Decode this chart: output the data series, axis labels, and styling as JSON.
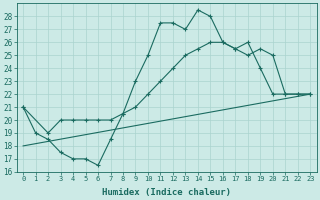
{
  "line1_x": [
    0,
    1,
    2,
    3,
    4,
    5,
    6,
    7,
    8,
    9,
    10,
    11,
    12,
    13,
    14,
    15,
    16,
    17,
    18,
    19,
    20,
    21,
    22,
    23
  ],
  "line1_y": [
    21,
    19,
    18.5,
    17.5,
    17,
    17,
    16.5,
    18.5,
    20.5,
    23,
    25,
    27.5,
    27.5,
    27,
    28.5,
    28,
    26,
    25.5,
    26,
    24,
    22,
    22,
    22,
    22
  ],
  "line2_x": [
    0,
    2,
    3,
    4,
    5,
    6,
    7,
    8,
    9,
    10,
    11,
    12,
    13,
    14,
    15,
    16,
    17,
    18,
    19,
    20,
    21,
    22,
    23
  ],
  "line2_y": [
    21,
    19,
    20,
    20,
    20,
    20,
    20,
    20.5,
    21,
    22,
    23,
    24,
    25,
    25.5,
    26,
    26,
    25.5,
    25,
    25.5,
    25,
    22,
    22,
    22
  ],
  "line3_x": [
    0,
    23
  ],
  "line3_y": [
    18,
    22
  ],
  "color": "#1a6b60",
  "bg_color": "#cceae6",
  "grid_color": "#aad4cf",
  "xlabel": "Humidex (Indice chaleur)",
  "ylim": [
    16,
    29
  ],
  "xlim": [
    -0.5,
    23.5
  ],
  "yticks": [
    16,
    17,
    18,
    19,
    20,
    21,
    22,
    23,
    24,
    25,
    26,
    27,
    28
  ],
  "xticks": [
    0,
    1,
    2,
    3,
    4,
    5,
    6,
    7,
    8,
    9,
    10,
    11,
    12,
    13,
    14,
    15,
    16,
    17,
    18,
    19,
    20,
    21,
    22,
    23
  ]
}
